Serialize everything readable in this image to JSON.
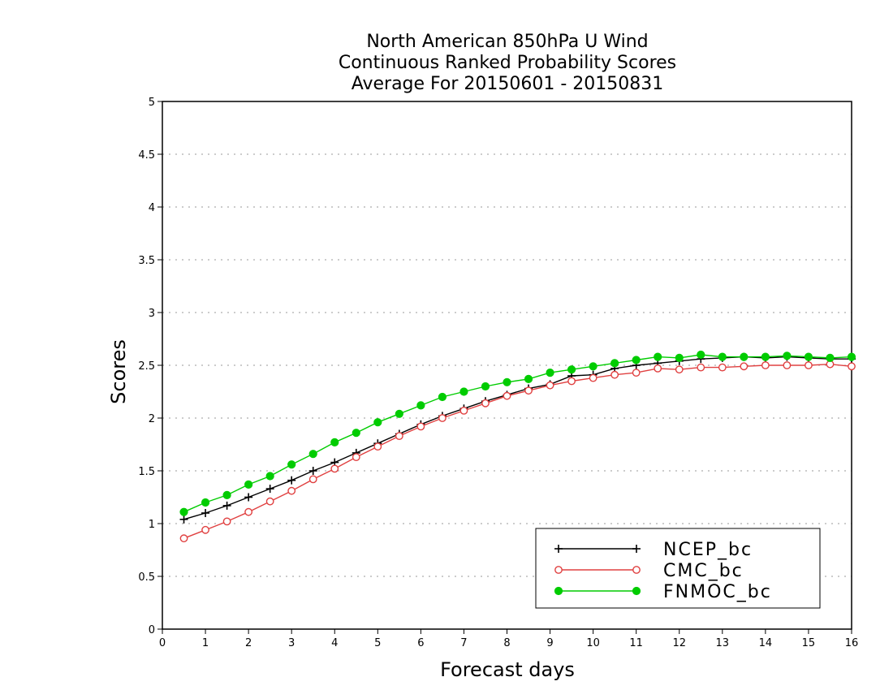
{
  "chart_data": {
    "type": "line",
    "title": [
      "North American 850hPa U Wind",
      "Continuous Ranked Probability Scores",
      "Average For 20150601 - 20150831"
    ],
    "xlabel": "Forecast days",
    "ylabel": "Scores",
    "xlim": [
      0,
      16
    ],
    "ylim": [
      0,
      5
    ],
    "xticks": [
      0,
      1,
      2,
      3,
      4,
      5,
      6,
      7,
      8,
      9,
      10,
      11,
      12,
      13,
      14,
      15,
      16
    ],
    "yticks": [
      0,
      0.5,
      1,
      1.5,
      2,
      2.5,
      3,
      3.5,
      4,
      4.5,
      5
    ],
    "ytick_labels": [
      "0",
      "0.5",
      "1",
      "1.5",
      "2",
      "2.5",
      "3",
      "3.5",
      "4",
      "4.5",
      "5"
    ],
    "grid": "horizontal dotted",
    "legend": "bottom-right",
    "x": [
      0.5,
      1,
      1.5,
      2,
      2.5,
      3,
      3.5,
      4,
      4.5,
      5,
      5.5,
      6,
      6.5,
      7,
      7.5,
      8,
      8.5,
      9,
      9.5,
      10,
      10.5,
      11,
      11.5,
      12,
      12.5,
      13,
      13.5,
      14,
      14.5,
      15,
      15.5,
      16
    ],
    "series": [
      {
        "name": "NCEP_bc",
        "color": "#000000",
        "marker": "plus",
        "values": [
          1.04,
          1.1,
          1.17,
          1.25,
          1.33,
          1.41,
          1.5,
          1.58,
          1.67,
          1.76,
          1.85,
          1.94,
          2.02,
          2.09,
          2.16,
          2.22,
          2.28,
          2.32,
          2.4,
          2.41,
          2.47,
          2.5,
          2.52,
          2.54,
          2.56,
          2.57,
          2.58,
          2.57,
          2.58,
          2.57,
          2.56,
          2.56
        ]
      },
      {
        "name": "CMC_bc",
        "color": "#e04040",
        "marker": "open-circle",
        "values": [
          0.86,
          0.94,
          1.02,
          1.11,
          1.21,
          1.31,
          1.42,
          1.52,
          1.63,
          1.73,
          1.83,
          1.92,
          2.0,
          2.07,
          2.14,
          2.21,
          2.26,
          2.31,
          2.35,
          2.38,
          2.41,
          2.43,
          2.47,
          2.46,
          2.48,
          2.48,
          2.49,
          2.5,
          2.5,
          2.5,
          2.51,
          2.49
        ]
      },
      {
        "name": "FNMOC_bc",
        "color": "#00cc00",
        "marker": "filled-circle",
        "values": [
          1.11,
          1.2,
          1.27,
          1.37,
          1.45,
          1.56,
          1.66,
          1.77,
          1.86,
          1.96,
          2.04,
          2.12,
          2.2,
          2.25,
          2.3,
          2.34,
          2.37,
          2.43,
          2.46,
          2.49,
          2.52,
          2.55,
          2.58,
          2.57,
          2.6,
          2.58,
          2.58,
          2.58,
          2.59,
          2.58,
          2.57,
          2.58
        ]
      }
    ]
  }
}
